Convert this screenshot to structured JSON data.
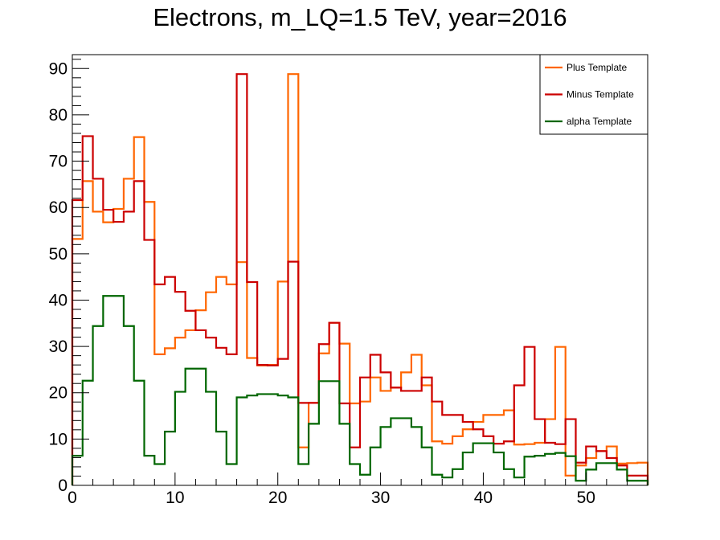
{
  "chart_data": {
    "type": "line",
    "title": "Electrons, m_LQ=1.5 TeV, year=2016",
    "xlabel": "",
    "ylabel": "",
    "xlim": [
      0,
      56
    ],
    "ylim": [
      0,
      93
    ],
    "x_ticks": [
      0,
      10,
      20,
      30,
      40,
      50
    ],
    "y_ticks": [
      0,
      10,
      20,
      30,
      40,
      50,
      60,
      70,
      80,
      90
    ],
    "bin_edges": [
      0,
      1,
      2,
      3,
      4,
      5,
      6,
      7,
      8,
      9,
      10,
      11,
      12,
      13,
      14,
      15,
      16,
      17,
      18,
      19,
      20,
      21,
      22,
      23,
      24,
      25,
      26,
      27,
      28,
      29,
      30,
      31,
      32,
      33,
      34,
      35,
      36,
      37,
      38,
      39,
      40,
      41,
      42,
      43,
      44,
      45,
      46,
      47,
      48,
      49,
      50,
      51,
      52,
      53,
      54,
      55,
      56
    ],
    "series": [
      {
        "name": "Plus Template",
        "color": "#ff6600",
        "values": [
          53.2,
          65.7,
          59.1,
          56.8,
          59.7,
          66.2,
          75.2,
          61.2,
          28.3,
          29.6,
          31.9,
          33.5,
          37.8,
          41.7,
          45.0,
          43.4,
          48.2,
          27.5,
          25.9,
          26.0,
          44.0,
          88.8,
          8.2,
          17.8,
          28.5,
          35.1,
          30.6,
          17.7,
          18.1,
          23.3,
          20.4,
          21.1,
          24.4,
          28.2,
          21.6,
          9.5,
          9.0,
          10.6,
          12.1,
          13.7,
          15.2,
          15.2,
          16.2,
          8.8,
          8.9,
          9.2,
          14.3,
          29.9,
          2.1,
          4.3,
          5.9,
          7.4,
          8.4,
          4.7,
          4.8,
          4.9
        ]
      },
      {
        "name": "Minus Template",
        "color": "#cc0000",
        "values": [
          61.6,
          75.4,
          66.2,
          59.5,
          56.9,
          59.1,
          65.7,
          53.0,
          43.4,
          45.0,
          41.8,
          37.7,
          33.5,
          31.9,
          29.7,
          28.3,
          88.8,
          43.9,
          26.0,
          25.9,
          27.3,
          48.3,
          17.8,
          17.8,
          30.5,
          35.1,
          17.7,
          8.2,
          23.3,
          28.2,
          24.4,
          21.1,
          20.4,
          20.4,
          23.3,
          18.1,
          15.2,
          15.2,
          13.7,
          12.1,
          10.6,
          9.0,
          9.5,
          21.6,
          29.9,
          14.3,
          9.2,
          8.9,
          14.3,
          4.9,
          8.4,
          7.4,
          5.9,
          4.3,
          2.1,
          2.1
        ]
      },
      {
        "name": "alpha Template",
        "color": "#006600",
        "values": [
          6.4,
          22.6,
          34.4,
          40.9,
          40.9,
          34.4,
          22.6,
          6.4,
          4.6,
          11.6,
          20.2,
          25.2,
          25.2,
          20.2,
          11.6,
          4.6,
          19.0,
          19.4,
          19.7,
          19.7,
          19.4,
          19.0,
          4.6,
          13.3,
          22.5,
          22.5,
          13.3,
          4.6,
          2.3,
          8.2,
          12.6,
          14.5,
          14.5,
          12.6,
          8.2,
          2.3,
          1.7,
          3.5,
          7.1,
          9.1,
          9.1,
          7.1,
          3.5,
          1.7,
          6.2,
          6.4,
          6.8,
          7.0,
          6.3,
          1.0,
          3.4,
          4.8,
          4.8,
          3.4,
          1.0,
          1.0
        ]
      }
    ],
    "legend": {
      "placement": "top-right",
      "entries": [
        "Plus Template",
        "Minus Template",
        "alpha Template"
      ]
    },
    "grid": false
  }
}
